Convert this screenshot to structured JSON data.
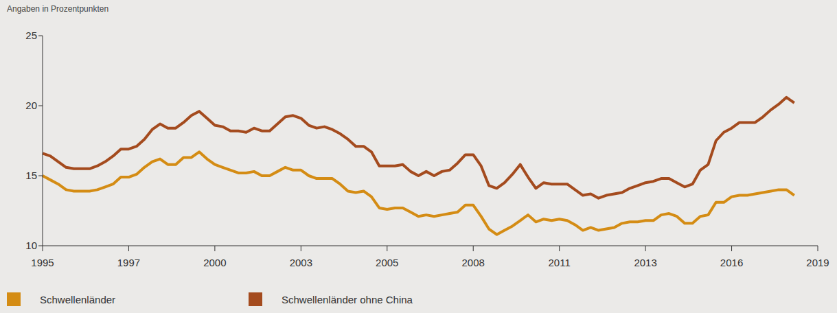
{
  "chart_data": {
    "type": "line",
    "y_label": "Angaben in Prozentpunkten",
    "categories": [
      "1995",
      null,
      null,
      null,
      null,
      null,
      null,
      null,
      null,
      null,
      null,
      "1997",
      null,
      null,
      null,
      null,
      null,
      null,
      null,
      null,
      null,
      null,
      "2000",
      null,
      null,
      null,
      null,
      null,
      null,
      null,
      null,
      null,
      null,
      "2003",
      null,
      null,
      null,
      null,
      null,
      null,
      null,
      null,
      null,
      null,
      "2005",
      null,
      null,
      null,
      null,
      null,
      null,
      null,
      null,
      null,
      null,
      "2008",
      null,
      null,
      null,
      null,
      null,
      null,
      null,
      null,
      null,
      null,
      "2011",
      null,
      null,
      null,
      null,
      null,
      null,
      null,
      null,
      null,
      null,
      "2013",
      null,
      null,
      null,
      null,
      null,
      null,
      null,
      null,
      null,
      null,
      "2016",
      null,
      null,
      null,
      null,
      null,
      null,
      null,
      null,
      null,
      null,
      "2019"
    ],
    "series": [
      {
        "name": "Schwellenländer",
        "color": "#d48c14",
        "values": [
          15.0,
          14.7,
          14.4,
          14.0,
          13.9,
          13.9,
          13.9,
          14.0,
          14.2,
          14.4,
          14.9,
          14.9,
          15.1,
          15.6,
          16.0,
          16.2,
          15.8,
          15.8,
          16.3,
          16.3,
          16.7,
          16.2,
          15.8,
          15.6,
          15.4,
          15.2,
          15.2,
          15.3,
          15.0,
          15.0,
          15.3,
          15.6,
          15.4,
          15.4,
          15.0,
          14.8,
          14.8,
          14.8,
          14.4,
          13.9,
          13.8,
          13.9,
          13.5,
          12.7,
          12.6,
          12.7,
          12.7,
          12.4,
          12.1,
          12.2,
          12.1,
          12.2,
          12.3,
          12.4,
          12.9,
          12.9,
          12.1,
          11.2,
          10.8,
          11.1,
          11.4,
          11.8,
          12.2,
          11.7,
          11.9,
          11.8,
          11.9,
          11.8,
          11.5,
          11.1,
          11.3,
          11.1,
          11.2,
          11.3,
          11.6,
          11.7,
          11.7,
          11.8,
          11.8,
          12.2,
          12.3,
          12.1,
          11.6,
          11.6,
          12.1,
          12.2,
          13.1,
          13.1,
          13.5,
          13.6,
          13.6,
          13.7,
          13.8,
          13.9,
          14.0,
          14.0,
          13.6,
          null,
          null,
          null
        ]
      },
      {
        "name": "Schwellenländer ohne China",
        "color": "#a44b1e",
        "values": [
          16.6,
          16.4,
          16.0,
          15.6,
          15.5,
          15.5,
          15.5,
          15.7,
          16.0,
          16.4,
          16.9,
          16.9,
          17.1,
          17.6,
          18.3,
          18.7,
          18.4,
          18.4,
          18.8,
          19.3,
          19.6,
          19.1,
          18.6,
          18.5,
          18.2,
          18.2,
          18.1,
          18.4,
          18.2,
          18.2,
          18.7,
          19.2,
          19.3,
          19.1,
          18.6,
          18.4,
          18.5,
          18.3,
          18.0,
          17.6,
          17.1,
          17.1,
          16.7,
          15.7,
          15.7,
          15.7,
          15.8,
          15.3,
          15.0,
          15.3,
          15.0,
          15.3,
          15.4,
          15.9,
          16.5,
          16.5,
          15.7,
          14.3,
          14.1,
          14.5,
          15.1,
          15.8,
          14.9,
          14.1,
          14.5,
          14.4,
          14.4,
          14.4,
          14.0,
          13.6,
          13.7,
          13.4,
          13.6,
          13.7,
          13.8,
          14.1,
          14.3,
          14.5,
          14.6,
          14.8,
          14.8,
          14.5,
          14.2,
          14.4,
          15.4,
          15.8,
          17.5,
          18.1,
          18.4,
          18.8,
          18.8,
          18.8,
          19.2,
          19.7,
          20.1,
          20.6,
          20.2,
          null,
          null,
          null
        ]
      }
    ],
    "ylim": [
      10,
      25
    ],
    "yticks": [
      10,
      15,
      20,
      25
    ],
    "grid": false,
    "legend": "bottom"
  }
}
